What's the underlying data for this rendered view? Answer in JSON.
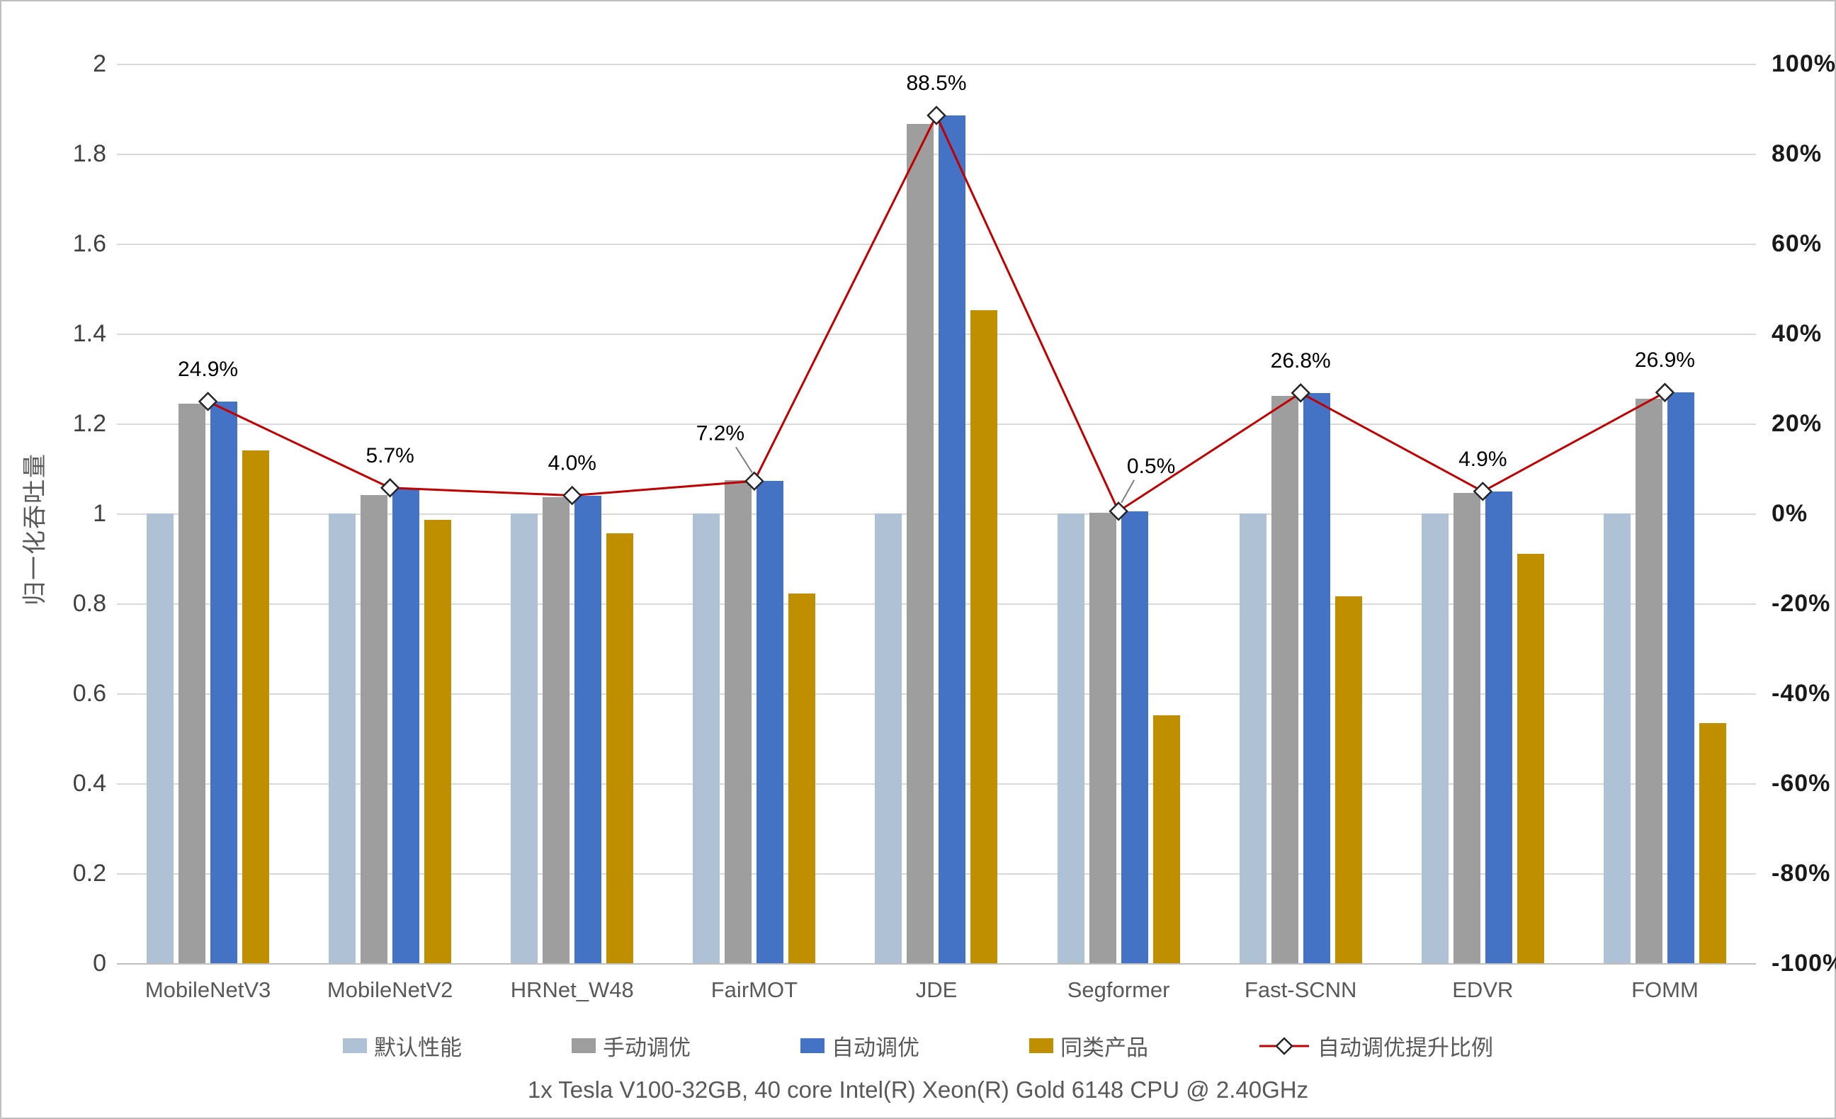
{
  "chart_data": {
    "type": "bar",
    "combo": "grouped-bars-with-line-on-secondary-axis",
    "categories": [
      "MobileNetV3",
      "MobileNetV2",
      "HRNet_W48",
      "FairMOT",
      "JDE",
      "Segformer",
      "Fast-SCNN",
      "EDVR",
      "FOMM"
    ],
    "series": [
      {
        "name": "默认性能",
        "key": "default-performance",
        "color": "#AFC2D5",
        "values": [
          1.0,
          1.0,
          1.0,
          1.0,
          1.0,
          1.0,
          1.0,
          1.0,
          1.0
        ]
      },
      {
        "name": "手动调优",
        "key": "manual-tuning",
        "color": "#9E9E9E",
        "values": [
          1.244,
          1.041,
          1.036,
          1.074,
          1.866,
          1.002,
          1.262,
          1.046,
          1.255
        ]
      },
      {
        "name": "自动调优",
        "key": "auto-tuning",
        "color": "#4472C4",
        "values": [
          1.249,
          1.057,
          1.04,
          1.072,
          1.885,
          1.005,
          1.268,
          1.049,
          1.269
        ]
      },
      {
        "name": "同类产品",
        "key": "competitor-product",
        "color": "#BF8F00",
        "values": [
          1.14,
          0.986,
          0.956,
          0.822,
          1.452,
          0.551,
          0.815,
          0.91,
          0.534
        ]
      }
    ],
    "line_series": {
      "name": "自动调优提升比例",
      "key": "auto-tuning-improvement-ratio",
      "color": "#C00000",
      "values_pct": [
        24.9,
        5.7,
        4.0,
        7.2,
        88.5,
        0.5,
        26.8,
        4.9,
        26.9
      ],
      "labels": [
        "24.9%",
        "5.7%",
        "4.0%",
        "7.2%",
        "88.5%",
        "0.5%",
        "26.8%",
        "4.9%",
        "26.9%"
      ]
    },
    "left_axis": {
      "title": "归一化吞吐量",
      "min": 0,
      "max": 2,
      "tick_labels": [
        "2",
        "1.8",
        "1.6",
        "1.4",
        "1.2",
        "1",
        "0.8",
        "0.6",
        "0.4",
        "0.2",
        "0"
      ]
    },
    "right_axis": {
      "min": -100,
      "max": 100,
      "tick_labels": [
        "100%",
        "80%",
        "60%",
        "40%",
        "20%",
        "0%",
        "-20%",
        "-40%",
        "-60%",
        "-80%",
        "-100%"
      ]
    },
    "grid": true,
    "legend_position": "bottom",
    "subtitle": "1x Tesla V100-32GB, 40 core Intel(R) Xeon(R) Gold 6148 CPU @ 2.40GHz",
    "colors": {
      "grid": "#D9D9D9",
      "axis_baseline": "#BFBFBF",
      "left_tick_text": "#404040",
      "right_tick_text": "#1A1A1A",
      "category_text": "#595959",
      "data_label_text": "#000000",
      "marker_fill": "#FFFFFF",
      "marker_stroke": "#262626"
    }
  }
}
